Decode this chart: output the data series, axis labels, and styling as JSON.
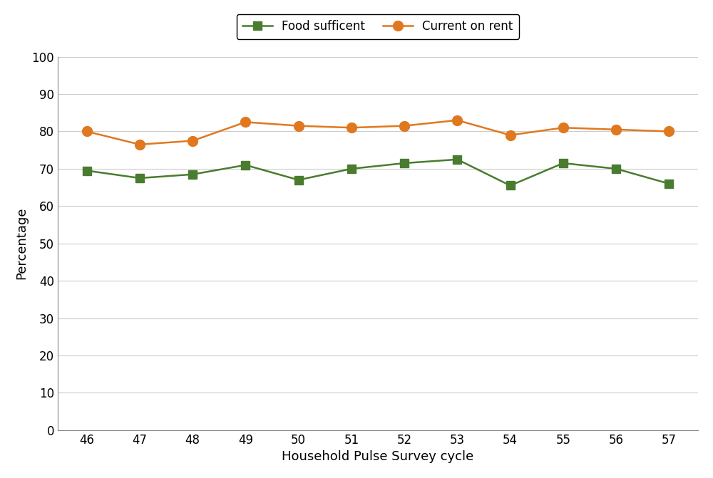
{
  "cycles": [
    46,
    47,
    48,
    49,
    50,
    51,
    52,
    53,
    54,
    55,
    56,
    57
  ],
  "food_sufficient": [
    69.5,
    67.5,
    68.5,
    71.0,
    67.0,
    70.0,
    71.5,
    72.5,
    65.5,
    71.5,
    70.0,
    66.0
  ],
  "current_on_rent": [
    80.0,
    76.5,
    77.5,
    82.5,
    81.5,
    81.0,
    81.5,
    83.0,
    79.0,
    81.0,
    80.5,
    80.0
  ],
  "food_color": "#4a7c2f",
  "rent_color": "#e07820",
  "background_color": "#ffffff",
  "plot_bg_color": "#ffffff",
  "title": "",
  "xlabel": "Household Pulse Survey cycle",
  "ylabel": "Percentage",
  "legend_food": "Food sufficent",
  "legend_rent": "Current on rent",
  "ylim": [
    0,
    100
  ],
  "yticks": [
    0,
    10,
    20,
    30,
    40,
    50,
    60,
    70,
    80,
    90,
    100
  ],
  "grid_color": "#cccccc"
}
